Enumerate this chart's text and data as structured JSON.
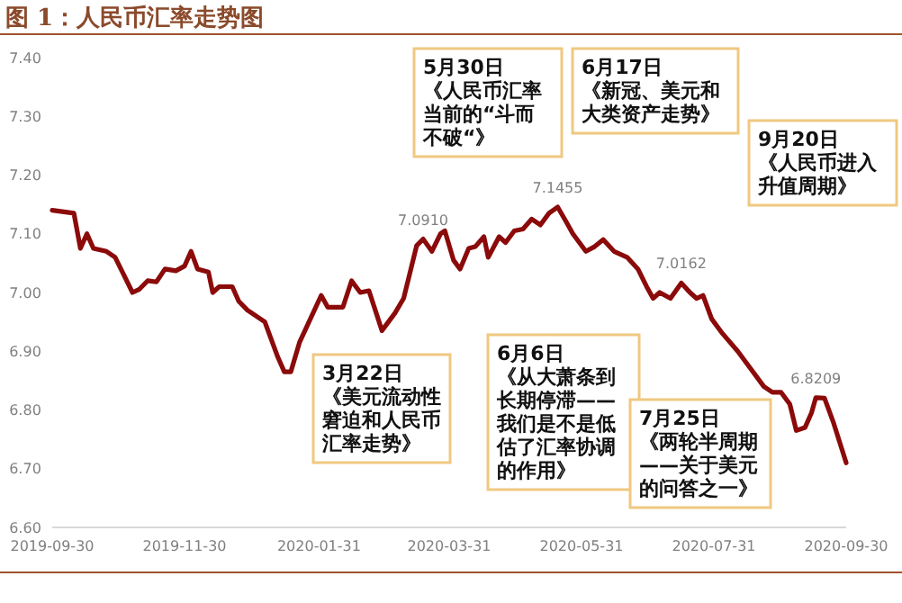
{
  "chart_data": {
    "type": "line",
    "title": "图 1：人民币汇率走势图",
    "x": [
      "2019-09-30",
      "2019-10-10",
      "2019-10-13",
      "2019-10-16",
      "2019-10-19",
      "2019-10-25",
      "2019-10-29",
      "2019-11-02",
      "2019-11-06",
      "2019-11-09",
      "2019-11-13",
      "2019-11-17",
      "2019-11-21",
      "2019-11-26",
      "2019-11-30",
      "2019-12-03",
      "2019-12-06",
      "2019-12-11",
      "2019-12-13",
      "2019-12-16",
      "2019-12-22",
      "2019-12-25",
      "2019-12-29",
      "2020-01-06",
      "2020-01-12",
      "2020-01-15",
      "2020-01-18",
      "2020-01-22",
      "2020-01-28",
      "2020-02-01",
      "2020-02-04",
      "2020-02-11",
      "2020-02-15",
      "2020-02-19",
      "2020-02-23",
      "2020-02-29",
      "2020-03-06",
      "2020-03-10",
      "2020-03-16",
      "2020-03-19",
      "2020-03-23",
      "2020-03-27",
      "2020-03-29",
      "2020-04-02",
      "2020-04-05",
      "2020-04-09",
      "2020-04-12",
      "2020-04-16",
      "2020-04-18",
      "2020-04-23",
      "2020-04-26",
      "2020-04-30",
      "2020-05-04",
      "2020-05-08",
      "2020-05-12",
      "2020-05-16",
      "2020-05-20",
      "2020-05-24",
      "2020-05-27",
      "2020-05-30",
      "2020-06-02",
      "2020-06-06",
      "2020-06-10",
      "2020-06-15",
      "2020-06-21",
      "2020-06-26",
      "2020-06-30",
      "2020-07-03",
      "2020-07-06",
      "2020-07-11",
      "2020-07-16",
      "2020-07-20",
      "2020-07-23",
      "2020-07-26",
      "2020-07-30",
      "2020-08-04",
      "2020-08-11",
      "2020-08-17",
      "2020-08-23",
      "2020-08-27",
      "2020-08-31",
      "2020-09-04",
      "2020-09-07",
      "2020-09-11",
      "2020-09-14",
      "2020-09-16",
      "2020-09-20",
      "2020-09-24",
      "2020-09-30"
    ],
    "series": [
      {
        "color": "#8b0a0a",
        "values": [
          7.14,
          7.135,
          7.075,
          7.1,
          7.075,
          7.07,
          7.06,
          7.03,
          7.0,
          7.005,
          7.02,
          7.018,
          7.04,
          7.037,
          7.045,
          7.07,
          7.04,
          7.035,
          7.0,
          7.01,
          7.01,
          6.985,
          6.97,
          6.95,
          6.89,
          6.865,
          6.865,
          6.915,
          6.963,
          6.995,
          6.975,
          6.975,
          7.02,
          7.0,
          7.003,
          6.935,
          6.965,
          6.99,
          7.08,
          7.091,
          7.07,
          7.1,
          7.105,
          7.055,
          7.04,
          7.075,
          7.078,
          7.095,
          7.06,
          7.095,
          7.085,
          7.105,
          7.108,
          7.125,
          7.115,
          7.135,
          7.1455,
          7.12,
          7.1,
          7.085,
          7.07,
          7.078,
          7.09,
          7.07,
          7.06,
          7.04,
          7.01,
          6.99,
          7.0,
          6.99,
          7.0162,
          7.0,
          6.99,
          6.995,
          6.955,
          6.93,
          6.9,
          6.87,
          6.84,
          6.83,
          6.83,
          6.81,
          6.765,
          6.77,
          6.795,
          6.8209,
          6.82,
          6.78,
          6.71
        ]
      }
    ],
    "xlim": [
      "2019-09-30",
      "2020-09-30"
    ],
    "xticks": [
      "2019-09-30",
      "2019-11-30",
      "2020-01-31",
      "2020-03-31",
      "2020-05-31",
      "2020-07-31",
      "2020-09-30"
    ],
    "ylim": [
      6.6,
      7.4
    ],
    "yticks": [
      {
        "value": 6.6,
        "label": "6.60"
      },
      {
        "value": 6.7,
        "label": "6.70"
      },
      {
        "value": 6.8,
        "label": "6.80"
      },
      {
        "value": 6.9,
        "label": "6.90"
      },
      {
        "value": 7.0,
        "label": "7.00"
      },
      {
        "value": 7.1,
        "label": "7.10"
      },
      {
        "value": 7.2,
        "label": "7.20"
      },
      {
        "value": 7.3,
        "label": "7.30"
      },
      {
        "value": 7.4,
        "label": "7.40"
      }
    ],
    "grid": false,
    "annotations": [
      {
        "text": "7.0910",
        "x": "2020-03-19",
        "y": 7.091
      },
      {
        "text": "7.1455",
        "x": "2020-05-20",
        "y": 7.1455
      },
      {
        "text": "7.0162",
        "x": "2020-07-16",
        "y": 7.0162
      },
      {
        "text": "6.8209",
        "x": "2020-09-16",
        "y": 6.8209
      },
      "5月30日《人民币汇率当前的“斗而不破“》",
      "6月17日《新冠、美元和大类资产走势》",
      "9月20日《人民币进入升值周期》",
      "3月22日《美元流动性窘迫和人民币汇率走势》",
      "6月6日《从大萧条到长期停滞——我们是不是低估了汇率协调的作用》",
      "7月25日《两轮半周期——关于美元的问答之一》"
    ]
  }
}
